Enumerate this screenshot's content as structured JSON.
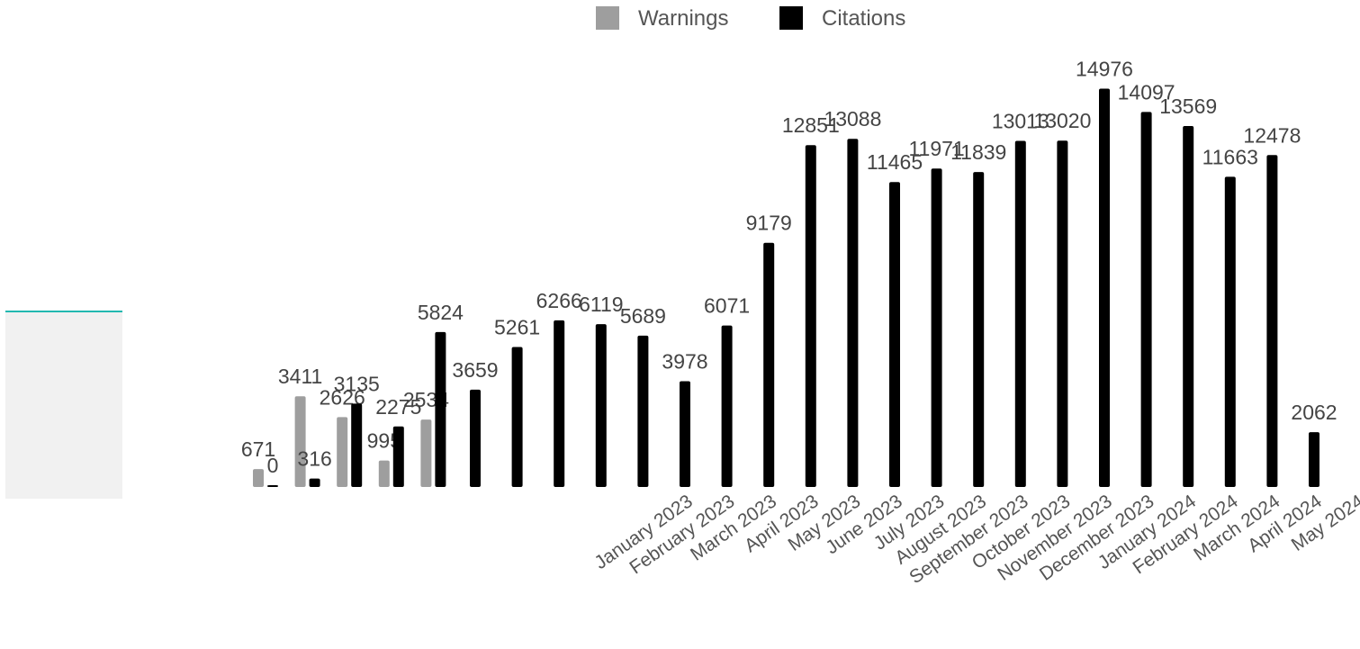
{
  "chart_data": {
    "type": "bar",
    "categories": [
      "",
      "",
      "",
      "",
      "",
      "",
      "",
      "",
      "",
      "",
      "January 2023",
      "February 2023",
      "March 2023",
      "April 2023",
      "May 2023",
      "June 2023",
      "July 2023",
      "August 2023",
      "September 2023",
      "October 2023",
      "November 2023",
      "December 2023",
      "January 2024",
      "February 2024",
      "March 2024",
      "April 2024",
      "May 2024"
    ],
    "series": [
      {
        "name": "Warnings",
        "color": "#9e9e9e",
        "values": [
          671,
          3411,
          2626,
          995,
          2534,
          null,
          null,
          null,
          null,
          null,
          null,
          null,
          null,
          null,
          null,
          null,
          null,
          null,
          null,
          null,
          null,
          null,
          null,
          null,
          null,
          null,
          null
        ],
        "labels": [
          "671",
          "3411",
          "2626",
          "995",
          "2534",
          "",
          "",
          "",
          "",
          "",
          "",
          "",
          "",
          "",
          "",
          "",
          "",
          "",
          "",
          "",
          "",
          "",
          "",
          "",
          "",
          "",
          ""
        ]
      },
      {
        "name": "Citations",
        "color": "#000000",
        "values": [
          0,
          316,
          3135,
          2275,
          5824,
          3659,
          5261,
          6266,
          6119,
          5689,
          3978,
          6071,
          9179,
          12851,
          13088,
          11465,
          11971,
          11839,
          13013,
          13020,
          14976,
          14097,
          13569,
          11663,
          12478,
          2062,
          null
        ],
        "labels": [
          "0",
          "316",
          "3135",
          "2275",
          "5824",
          "3659",
          "5261",
          "6266",
          "6119",
          "5689",
          "3978",
          "6071",
          "9179",
          "12851",
          "13088",
          "11465",
          "11971",
          "11839",
          "13013",
          "13020",
          "14976",
          "14097",
          "13569",
          "11663",
          "12478",
          "2062",
          ""
        ]
      }
    ],
    "legend_position": "top-center",
    "grid": false,
    "ylim": [
      0,
      15600
    ]
  }
}
